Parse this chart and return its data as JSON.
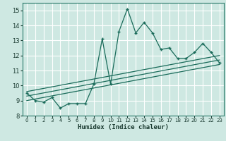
{
  "xlabel": "Humidex (Indice chaleur)",
  "ylabel": "",
  "xlim": [
    -0.5,
    23.5
  ],
  "ylim": [
    8.0,
    15.5
  ],
  "yticks": [
    8,
    9,
    10,
    11,
    12,
    13,
    14,
    15
  ],
  "xticks": [
    0,
    1,
    2,
    3,
    4,
    5,
    6,
    7,
    8,
    9,
    10,
    11,
    12,
    13,
    14,
    15,
    16,
    17,
    18,
    19,
    20,
    21,
    22,
    23
  ],
  "bg_color": "#cee8e2",
  "grid_color": "#ffffff",
  "line_color": "#1a6b5a",
  "data_x": [
    0,
    1,
    2,
    3,
    4,
    5,
    6,
    7,
    8,
    9,
    10,
    11,
    12,
    13,
    14,
    15,
    16,
    17,
    18,
    19,
    20,
    21,
    22,
    23
  ],
  "data_y": [
    9.5,
    9.0,
    8.9,
    9.2,
    8.5,
    8.8,
    8.8,
    8.8,
    10.1,
    13.1,
    10.1,
    13.6,
    15.1,
    13.5,
    14.2,
    13.5,
    12.4,
    12.5,
    11.8,
    11.8,
    12.2,
    12.8,
    12.2,
    11.5
  ],
  "reg_lines": [
    [
      [
        0,
        23
      ],
      [
        9.0,
        11.4
      ]
    ],
    [
      [
        0,
        23
      ],
      [
        9.3,
        11.7
      ]
    ],
    [
      [
        0,
        23
      ],
      [
        9.6,
        12.0
      ]
    ]
  ]
}
